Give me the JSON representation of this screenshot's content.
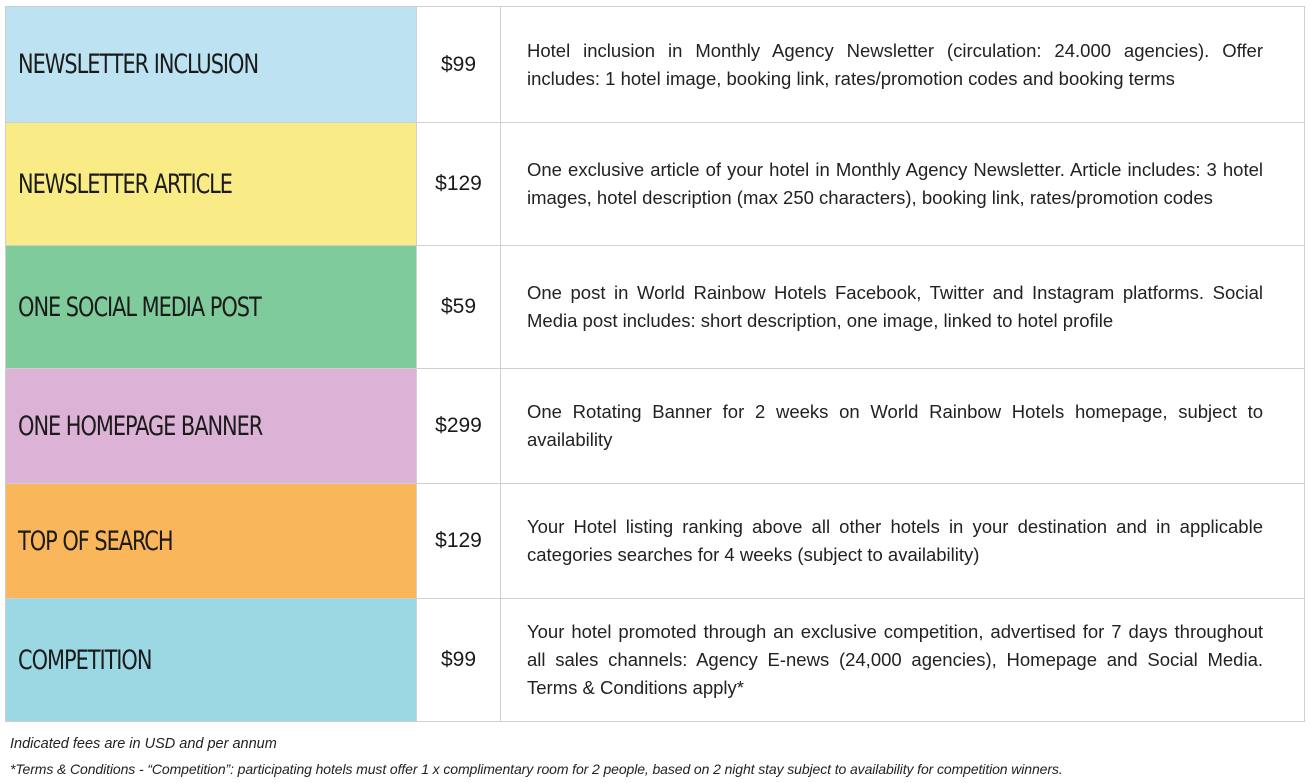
{
  "rows": [
    {
      "name": "NEWSLETTER INCLUSION",
      "price": "$99",
      "color": "#bde3f2",
      "description": "Hotel inclusion in Monthly Agency Newsletter (circulation: 24.000 agencies). Offer includes: 1 hotel image, booking link, rates/promotion codes and booking terms"
    },
    {
      "name": "NEWSLETTER ARTICLE",
      "price": "$129",
      "color": "#f9eb86",
      "description": "One exclusive article of your hotel in Monthly Agency Newsletter. Article includes: 3 hotel images, hotel description (max 250 characters), booking link, rates/promotion codes"
    },
    {
      "name": "ONE SOCIAL MEDIA POST",
      "price": "$59",
      "color": "#80cb9c",
      "description": "One post in World Rainbow Hotels Facebook, Twitter and Instagram platforms. Social Media post includes: short description, one image, linked to hotel profile"
    },
    {
      "name": "ONE HOMEPAGE BANNER",
      "price": "$299",
      "color": "#dcb3d7",
      "description": "One Rotating Banner for 2 weeks on World Rainbow Hotels homepage, subject to availability"
    },
    {
      "name": "TOP OF SEARCH",
      "price": "$129",
      "color": "#f9b65a",
      "description": "Your Hotel listing ranking above all other hotels in your destination and in applicable categories searches for 4 weeks (subject to availability)"
    },
    {
      "name": "COMPETITION",
      "price": "$99",
      "color": "#9bd8e3",
      "description": "Your hotel promoted through an exclusive competition, advertised for 7 days throughout all sales channels: Agency E-news (24,000 agencies), Homepage and Social Media. Terms & Conditions apply*"
    }
  ],
  "notes": {
    "fees": "Indicated fees are in USD and per annum",
    "terms": "*Terms & Conditions - “Competition”: participating hotels must offer 1 x complimentary room for 2 people, based on 2 night stay subject to availability for competition winners."
  }
}
